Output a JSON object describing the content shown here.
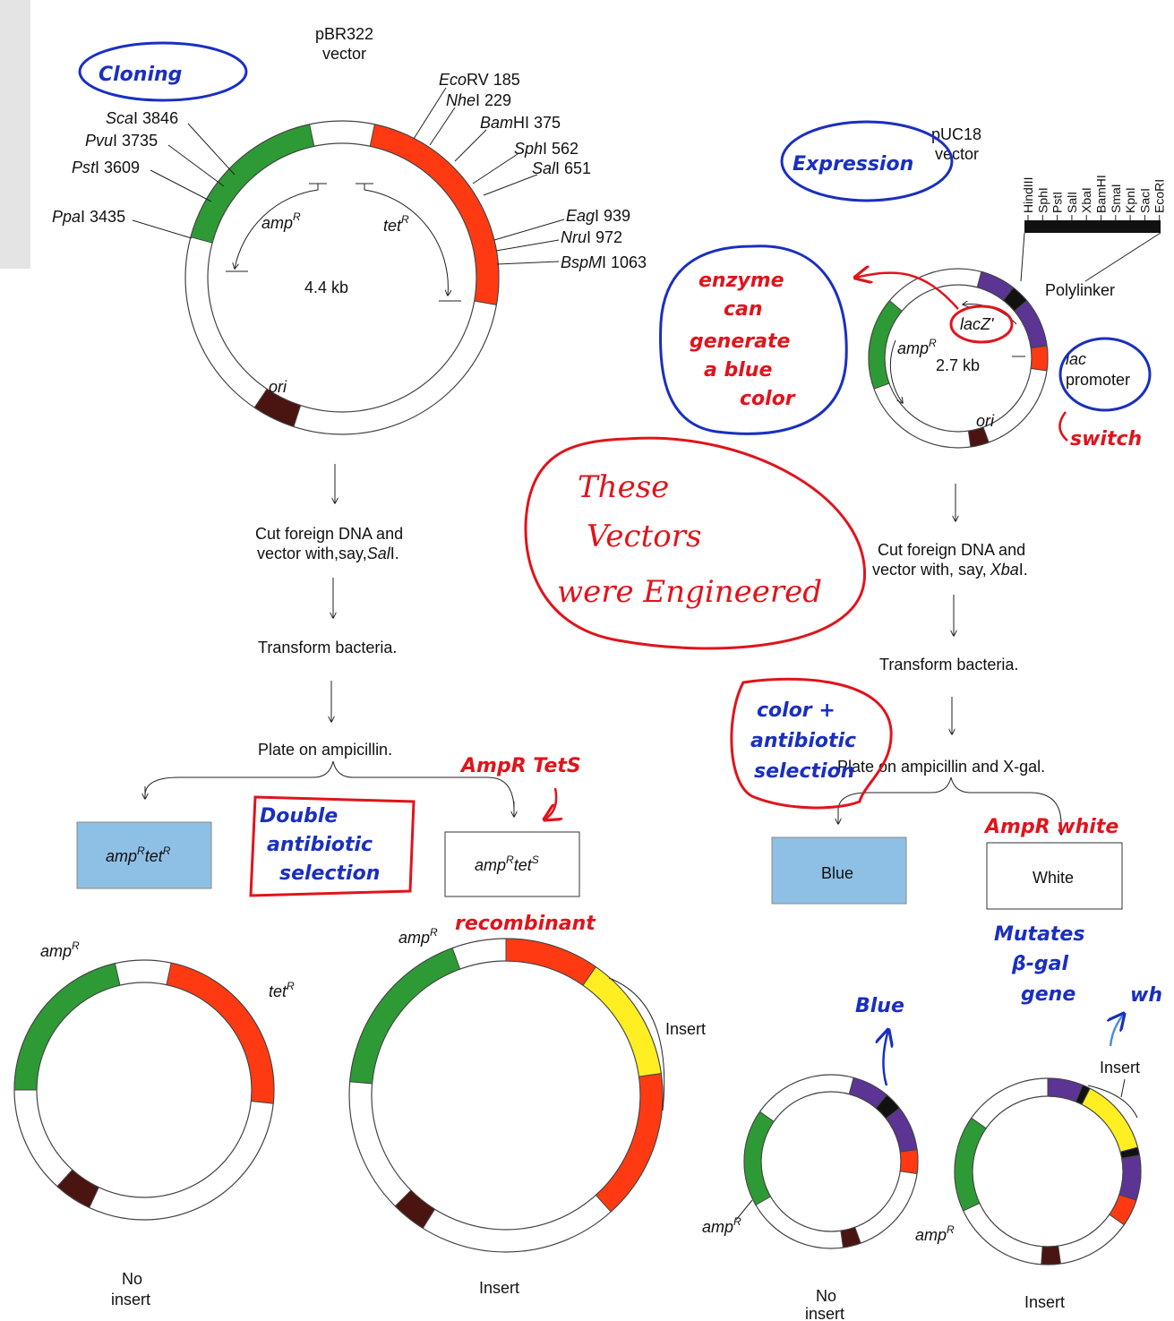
{
  "pbr": {
    "title_line1": "pBR322",
    "title_line2": "vector",
    "size": "4.4 kb",
    "amp_label": "amp",
    "tet_label": "tet",
    "sup_r": "R",
    "sup_s": "S",
    "ori_label": "ori",
    "sites": [
      {
        "italic": "Eco",
        "rest": "RV 185"
      },
      {
        "italic": "Nhe",
        "rest": "I 229"
      },
      {
        "italic": "Bam",
        "rest": "HI 375"
      },
      {
        "italic": "Sph",
        "rest": "I 562"
      },
      {
        "italic": "Sal",
        "rest": "I 651"
      },
      {
        "italic": "Eag",
        "rest": "I 939"
      },
      {
        "italic": "Nru",
        "rest": "I 972"
      },
      {
        "italic": "BspM",
        "rest": "I 1063"
      },
      {
        "italic": "Sca",
        "rest": "I 3846"
      },
      {
        "italic": "Pvu",
        "rest": "I 3735"
      },
      {
        "italic": "Pst",
        "rest": "I 3609"
      },
      {
        "italic": "Ppa",
        "rest": "I 3435"
      }
    ],
    "step1_line1": "Cut foreign DNA and",
    "step1_line2": "vector with,say,",
    "step1_enzyme": "Sal",
    "step1_end": "I.",
    "step2": "Transform bacteria.",
    "step3": "Plate on ampicillin.",
    "box_left_a": "amp",
    "box_left_b": "tet",
    "box_right_a": "amp",
    "box_right_b": "tet",
    "no_insert_1": "No",
    "no_insert_2": "insert",
    "insert": "Insert"
  },
  "puc": {
    "title_line1": "pUC18",
    "title_line2": "vector",
    "size": "2.7 kb",
    "amp_label": "amp",
    "sup_r": "R",
    "lacz": "lacZ'",
    "lac": "lac",
    "promoter": "promoter",
    "polylinker": "Polylinker",
    "ori_label": "ori",
    "polylinker_sites": [
      "HindIII",
      "SphI",
      "PstI",
      "SalI",
      "XbaI",
      "BamHI",
      "SmaI",
      "KpnI",
      "SacI",
      "EcoRI"
    ],
    "step1_line1": "Cut foreign DNA and",
    "step1_line2": "vector with, say,",
    "step1_enzyme": "Xba",
    "step1_end": "I.",
    "step2": "Transform bacteria.",
    "step3": "Plate on ampicillin and X-gal.",
    "blue_box": "Blue",
    "white_box": "White",
    "no_insert_1": "No",
    "no_insert_2": "insert",
    "insert": "Insert",
    "insert_label": "Insert"
  },
  "annotations": {
    "cloning": "Cloning",
    "expression": "Expression",
    "enzyme_1": "enzyme",
    "enzyme_2": "can",
    "enzyme_3": "generate",
    "enzyme_4": "a blue",
    "enzyme_5": "color",
    "switch": "switch",
    "these_1": "These",
    "these_2": "Vectors",
    "these_3": "were Engineered",
    "color_1": "color +",
    "color_2": "antibiotic",
    "color_3": "selection",
    "amp_tet": "AmpR TetS",
    "double_1": "Double",
    "double_2": "antibiotic",
    "double_3": "selection",
    "recombinant": "recombinant",
    "amp_white": "AmpR white",
    "mutates_1": "Mutates",
    "mutates_2": "β-gal",
    "mutates_3": "gene",
    "blue_note": "Blue",
    "wh_note": "wh"
  },
  "colors": {
    "green": "#2e9a35",
    "red": "#ff3a12",
    "maroon": "#4a1410",
    "yellow": "#ffee22",
    "purple": "#5b3494",
    "box_blue": "#8ec0e6",
    "ink_blue": "#1a2fc0",
    "ink_red": "#e0141c"
  }
}
